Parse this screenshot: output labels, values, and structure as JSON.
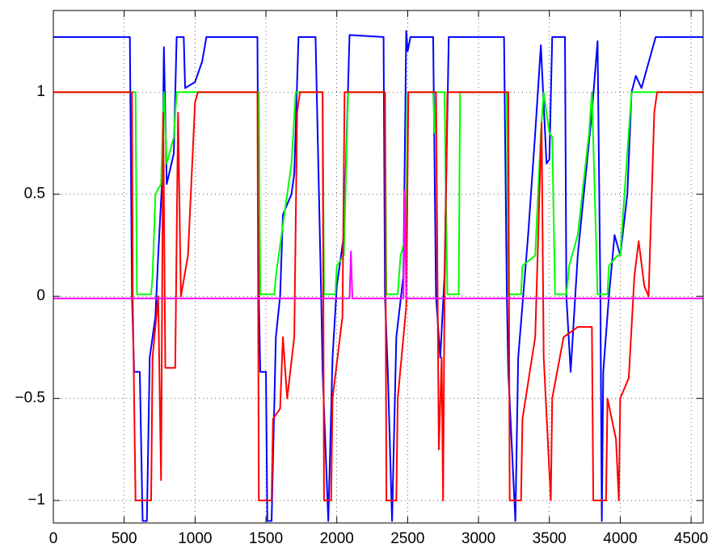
{
  "chart_data": {
    "type": "line",
    "xlim": [
      0,
      4585
    ],
    "ylim": [
      -1.11,
      1.4
    ],
    "xticks": [
      0,
      500,
      1000,
      1500,
      2000,
      2500,
      3000,
      3500,
      4000,
      4500
    ],
    "yticks": [
      {
        "value": -1,
        "label": "−1"
      },
      {
        "value": -0.5,
        "label": "−0.5"
      },
      0,
      0.5,
      1
    ],
    "grid": true,
    "series": [
      {
        "color": "#0000ff",
        "x": [
          0,
          540,
          555,
          570,
          610,
          630,
          660,
          680,
          720,
          740,
          770,
          780,
          800,
          850,
          870,
          920,
          930,
          1000,
          1050,
          1080,
          1440,
          1450,
          1460,
          1500,
          1510,
          1540,
          1570,
          1600,
          1620,
          1680,
          1700,
          1730,
          1850,
          1890,
          1900,
          1940,
          1970,
          2000,
          2050,
          2090,
          2330,
          2340,
          2360,
          2390,
          2420,
          2470,
          2490,
          2500,
          2520,
          2680,
          2700,
          2730,
          2760,
          2790,
          3180,
          3200,
          3210,
          3260,
          3280,
          3350,
          3400,
          3440,
          3480,
          3500,
          3520,
          3610,
          3620,
          3650,
          3700,
          3800,
          3840,
          3860,
          3870,
          3880,
          3920,
          3960,
          4000,
          4050,
          4080,
          4110,
          4150,
          4250,
          4585
        ],
        "values": [
          1.27,
          1.27,
          0,
          -0.37,
          -0.37,
          -1.1,
          -1.1,
          -0.3,
          -0.1,
          0.2,
          0.6,
          1.22,
          0.55,
          0.7,
          1.27,
          1.27,
          1.02,
          1.05,
          1.15,
          1.27,
          1.27,
          0,
          -0.37,
          -0.37,
          -1.1,
          -1.1,
          -0.2,
          0,
          0.4,
          0.5,
          0.6,
          1.27,
          1.27,
          0,
          -0.37,
          -1.1,
          -0.3,
          0.05,
          0.3,
          1.28,
          1.27,
          0,
          -0.37,
          -1.1,
          -0.2,
          0.1,
          1.3,
          1.2,
          1.27,
          1.27,
          0,
          -0.3,
          0.1,
          1.27,
          1.27,
          0,
          -0.37,
          -1.1,
          -0.3,
          0.3,
          0.8,
          1.23,
          0.65,
          0.67,
          1.27,
          1.27,
          0,
          -0.37,
          0.2,
          0.9,
          1.25,
          0,
          -1.1,
          -0.37,
          0,
          0.3,
          0.2,
          0.5,
          1,
          1.08,
          1.02,
          1.27,
          1.27
        ]
      },
      {
        "color": "#00ff00",
        "x": [
          0,
          580,
          590,
          690,
          700,
          720,
          760,
          780,
          800,
          850,
          870,
          1450,
          1460,
          1560,
          1570,
          1620,
          1680,
          1710,
          1900,
          1910,
          1990,
          2000,
          2050,
          2080,
          2340,
          2350,
          2430,
          2450,
          2490,
          2500,
          2680,
          2690,
          2700,
          2760,
          2780,
          2860,
          2870,
          3200,
          3210,
          3300,
          3310,
          3400,
          3440,
          3460,
          3500,
          3520,
          3540,
          3620,
          3640,
          3700,
          3780,
          3800,
          3840,
          3910,
          3920,
          3980,
          4000,
          4050,
          4080,
          4585
        ],
        "values": [
          1,
          1,
          0.01,
          0.01,
          0.1,
          0.5,
          0.55,
          1,
          0.65,
          0.78,
          1,
          1,
          0.01,
          0.01,
          0.1,
          0.35,
          0.65,
          1,
          1,
          0.01,
          0.01,
          0.15,
          0.2,
          1,
          1,
          0.01,
          0.01,
          0.2,
          0.3,
          1,
          1,
          0.8,
          1,
          1,
          0.01,
          0.01,
          1,
          1,
          0.01,
          0.01,
          0.15,
          0.2,
          0.8,
          1,
          0.8,
          0.78,
          0.01,
          0.01,
          0.15,
          0.3,
          0.8,
          1,
          0.01,
          0.01,
          0.15,
          0.2,
          0.2,
          0.7,
          1,
          1
        ]
      },
      {
        "color": "#ff0000",
        "x": [
          0,
          555,
          560,
          580,
          690,
          700,
          740,
          760,
          775,
          790,
          860,
          880,
          900,
          950,
          1000,
          1020,
          1440,
          1450,
          1540,
          1550,
          1600,
          1620,
          1650,
          1700,
          1720,
          1740,
          1900,
          1910,
          1960,
          1970,
          2040,
          2055,
          2340,
          2350,
          2420,
          2430,
          2490,
          2505,
          2700,
          2720,
          2740,
          2750,
          2760,
          2780,
          3210,
          3220,
          3300,
          3310,
          3400,
          3445,
          3460,
          3510,
          3520,
          3600,
          3700,
          3800,
          3810,
          3900,
          3910,
          3970,
          3990,
          4000,
          4060,
          4100,
          4130,
          4170,
          4200,
          4240,
          4260,
          4585
        ],
        "values": [
          1,
          1,
          0,
          -1,
          -1,
          -0.3,
          0,
          -0.9,
          0.9,
          -0.35,
          -0.35,
          0.9,
          0,
          0.2,
          0.95,
          1,
          1,
          -1,
          -1,
          -0.6,
          -0.55,
          -0.2,
          -0.5,
          -0.2,
          0.9,
          1,
          1,
          -1,
          -1,
          -0.5,
          -0.1,
          1,
          1,
          -1,
          -1,
          -0.5,
          -0.05,
          1,
          1,
          -0.75,
          -0.3,
          -1,
          0,
          1,
          1,
          -1,
          -1,
          -0.6,
          -0.2,
          0.85,
          -0.3,
          -1,
          -0.5,
          -0.2,
          -0.15,
          -0.15,
          -1,
          -1,
          -0.5,
          -0.7,
          -1,
          -0.5,
          -0.4,
          0.1,
          0.27,
          0.05,
          0,
          0.9,
          1,
          1
        ]
      },
      {
        "color": "#ff00ff",
        "x": [
          0,
          2090,
          2100,
          2110,
          2470,
          2480,
          2490,
          4585
        ],
        "values": [
          -0.01,
          -0.01,
          0.22,
          -0.01,
          -0.01,
          0.52,
          -0.01,
          -0.01
        ]
      }
    ]
  }
}
